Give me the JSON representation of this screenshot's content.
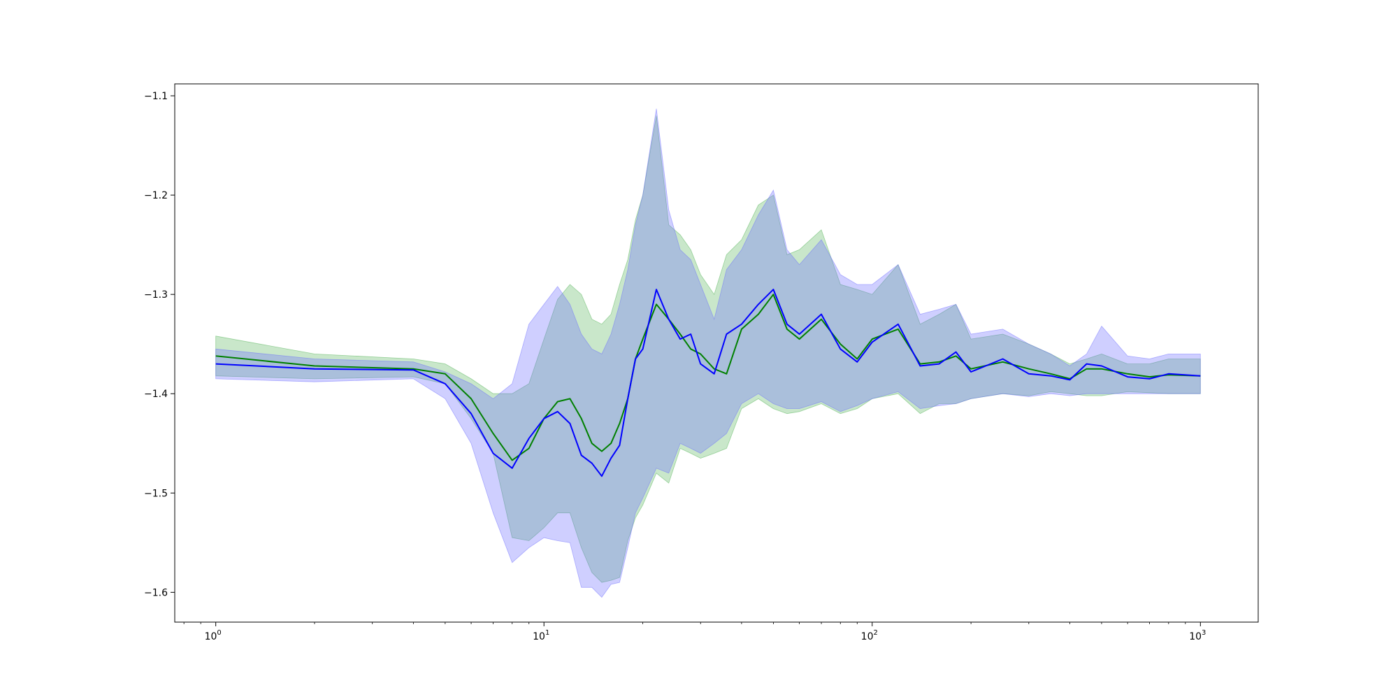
{
  "chart_data": {
    "type": "line",
    "title": "",
    "xlabel": "",
    "ylabel": "",
    "xscale": "log",
    "xlim": [
      0.75,
      1500
    ],
    "ylim": [
      -1.63,
      -1.088
    ],
    "grid": false,
    "legend": "none",
    "x_ticks": [
      {
        "base": "10",
        "exp": "0",
        "value": 1
      },
      {
        "base": "10",
        "exp": "1",
        "value": 10
      },
      {
        "base": "10",
        "exp": "2",
        "value": 100
      },
      {
        "base": "10",
        "exp": "3",
        "value": 1000
      }
    ],
    "y_ticks": [
      {
        "label": "−1.1",
        "value": -1.1
      },
      {
        "label": "−1.2",
        "value": -1.2
      },
      {
        "label": "−1.3",
        "value": -1.3
      },
      {
        "label": "−1.4",
        "value": -1.4
      },
      {
        "label": "−1.5",
        "value": -1.5
      },
      {
        "label": "−1.6",
        "value": -1.6
      }
    ],
    "series": [
      {
        "line_color": "#008000",
        "band_color": "#4caf50",
        "x": [
          1,
          2,
          4,
          5,
          6,
          7,
          8,
          9,
          10,
          11,
          12,
          13,
          14,
          15,
          16,
          17,
          18,
          19,
          20,
          22,
          24,
          26,
          28,
          30,
          33,
          36,
          40,
          45,
          50,
          55,
          60,
          70,
          80,
          90,
          100,
          120,
          140,
          160,
          180,
          200,
          250,
          300,
          350,
          400,
          450,
          500,
          600,
          700,
          800,
          1000
        ],
        "y": [
          -1.362,
          -1.372,
          -1.375,
          -1.38,
          -1.405,
          -1.44,
          -1.467,
          -1.455,
          -1.425,
          -1.408,
          -1.405,
          -1.425,
          -1.45,
          -1.458,
          -1.45,
          -1.43,
          -1.405,
          -1.365,
          -1.345,
          -1.31,
          -1.325,
          -1.34,
          -1.355,
          -1.36,
          -1.375,
          -1.38,
          -1.335,
          -1.32,
          -1.3,
          -1.335,
          -1.345,
          -1.325,
          -1.35,
          -1.365,
          -1.345,
          -1.335,
          -1.37,
          -1.368,
          -1.362,
          -1.375,
          -1.368,
          -1.375,
          -1.38,
          -1.385,
          -1.375,
          -1.375,
          -1.38,
          -1.383,
          -1.381,
          -1.382
        ],
        "lower": [
          -1.382,
          -1.385,
          -1.383,
          -1.39,
          -1.425,
          -1.46,
          -1.545,
          -1.548,
          -1.535,
          -1.52,
          -1.52,
          -1.555,
          -1.58,
          -1.59,
          -1.588,
          -1.585,
          -1.548,
          -1.525,
          -1.512,
          -1.48,
          -1.49,
          -1.455,
          -1.46,
          -1.465,
          -1.46,
          -1.455,
          -1.415,
          -1.405,
          -1.415,
          -1.42,
          -1.418,
          -1.41,
          -1.42,
          -1.415,
          -1.405,
          -1.4,
          -1.42,
          -1.41,
          -1.41,
          -1.405,
          -1.4,
          -1.402,
          -1.398,
          -1.4,
          -1.402,
          -1.402,
          -1.398,
          -1.399,
          -1.4,
          -1.4
        ],
        "upper": [
          -1.342,
          -1.36,
          -1.365,
          -1.37,
          -1.385,
          -1.4,
          -1.4,
          -1.39,
          -1.345,
          -1.305,
          -1.29,
          -1.3,
          -1.325,
          -1.33,
          -1.32,
          -1.29,
          -1.265,
          -1.225,
          -1.2,
          -1.12,
          -1.23,
          -1.24,
          -1.255,
          -1.28,
          -1.3,
          -1.26,
          -1.245,
          -1.21,
          -1.2,
          -1.26,
          -1.255,
          -1.235,
          -1.29,
          -1.295,
          -1.3,
          -1.27,
          -1.33,
          -1.32,
          -1.31,
          -1.345,
          -1.34,
          -1.35,
          -1.36,
          -1.37,
          -1.365,
          -1.36,
          -1.37,
          -1.37,
          -1.365,
          -1.365
        ]
      },
      {
        "line_color": "#0000ff",
        "band_color": "#6a6aff",
        "x": [
          1,
          2,
          4,
          5,
          6,
          7,
          8,
          9,
          10,
          11,
          12,
          13,
          14,
          15,
          16,
          17,
          18,
          19,
          20,
          22,
          24,
          26,
          28,
          30,
          33,
          36,
          40,
          45,
          50,
          55,
          60,
          70,
          80,
          90,
          100,
          120,
          140,
          160,
          180,
          200,
          250,
          300,
          350,
          400,
          450,
          500,
          600,
          700,
          800,
          1000
        ],
        "y": [
          -1.37,
          -1.375,
          -1.376,
          -1.39,
          -1.42,
          -1.46,
          -1.475,
          -1.445,
          -1.425,
          -1.418,
          -1.43,
          -1.462,
          -1.47,
          -1.483,
          -1.465,
          -1.452,
          -1.405,
          -1.365,
          -1.355,
          -1.295,
          -1.325,
          -1.345,
          -1.34,
          -1.37,
          -1.38,
          -1.34,
          -1.33,
          -1.31,
          -1.295,
          -1.33,
          -1.34,
          -1.32,
          -1.355,
          -1.368,
          -1.348,
          -1.33,
          -1.372,
          -1.37,
          -1.358,
          -1.378,
          -1.365,
          -1.38,
          -1.382,
          -1.386,
          -1.37,
          -1.372,
          -1.383,
          -1.385,
          -1.38,
          -1.382
        ],
        "lower": [
          -1.385,
          -1.388,
          -1.385,
          -1.405,
          -1.45,
          -1.52,
          -1.57,
          -1.555,
          -1.545,
          -1.548,
          -1.55,
          -1.595,
          -1.595,
          -1.605,
          -1.592,
          -1.59,
          -1.555,
          -1.52,
          -1.505,
          -1.475,
          -1.48,
          -1.45,
          -1.455,
          -1.46,
          -1.45,
          -1.44,
          -1.41,
          -1.4,
          -1.41,
          -1.415,
          -1.415,
          -1.408,
          -1.418,
          -1.412,
          -1.405,
          -1.398,
          -1.415,
          -1.412,
          -1.41,
          -1.405,
          -1.4,
          -1.403,
          -1.4,
          -1.402,
          -1.4,
          -1.4,
          -1.4,
          -1.4,
          -1.4,
          -1.4
        ],
        "upper": [
          -1.355,
          -1.365,
          -1.368,
          -1.378,
          -1.39,
          -1.405,
          -1.39,
          -1.33,
          -1.31,
          -1.292,
          -1.31,
          -1.34,
          -1.355,
          -1.36,
          -1.34,
          -1.31,
          -1.275,
          -1.23,
          -1.2,
          -1.113,
          -1.215,
          -1.255,
          -1.265,
          -1.29,
          -1.325,
          -1.275,
          -1.255,
          -1.22,
          -1.195,
          -1.255,
          -1.27,
          -1.245,
          -1.28,
          -1.29,
          -1.29,
          -1.27,
          -1.32,
          -1.315,
          -1.31,
          -1.34,
          -1.335,
          -1.35,
          -1.36,
          -1.372,
          -1.36,
          -1.332,
          -1.362,
          -1.365,
          -1.36,
          -1.36
        ]
      }
    ]
  }
}
